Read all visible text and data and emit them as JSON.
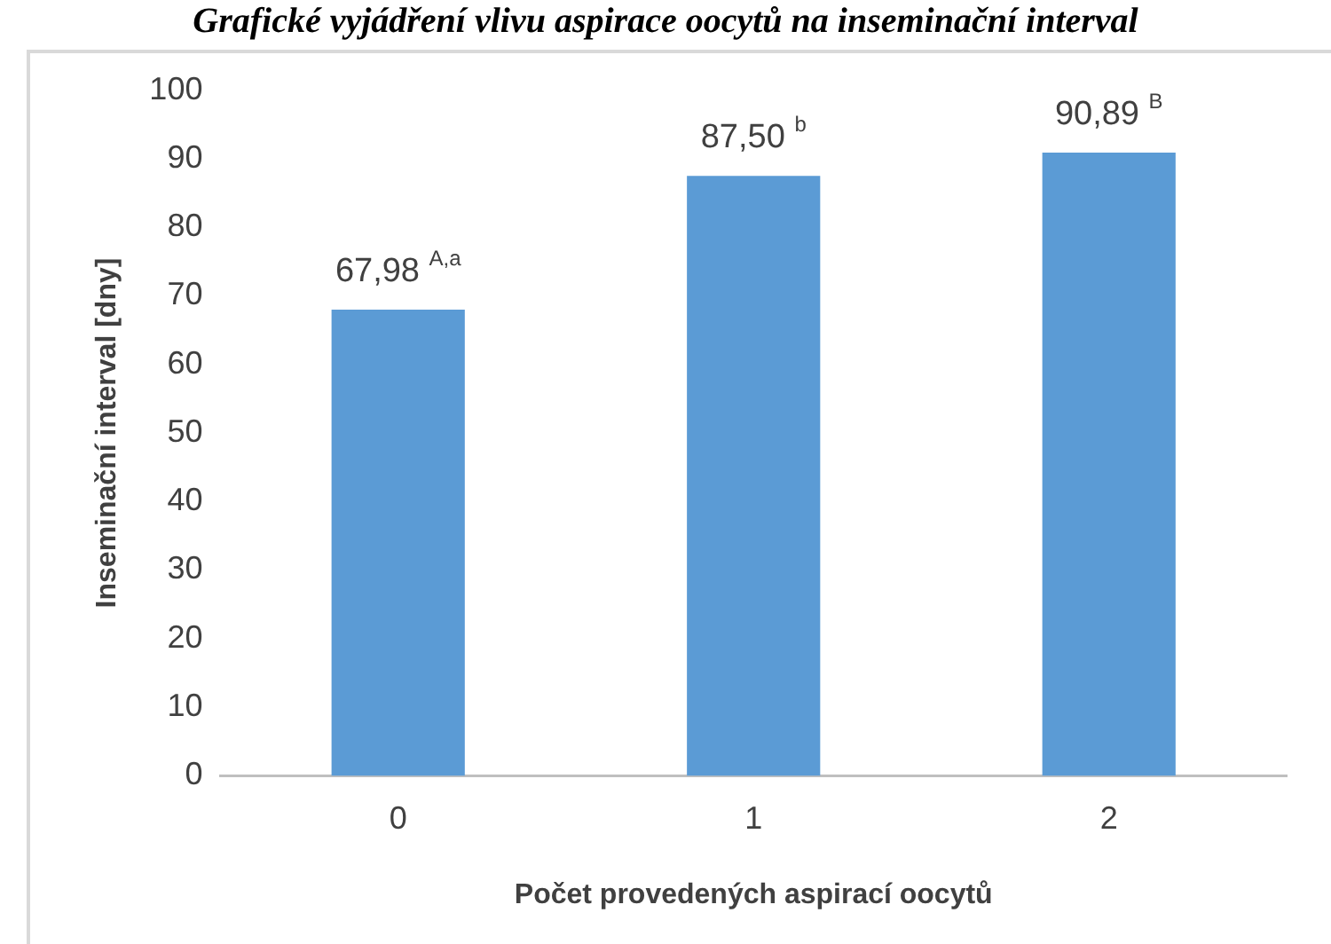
{
  "chart_data": {
    "type": "bar",
    "title": "Grafické vyjádření vlivu aspirace oocytů na inseminační interval",
    "xlabel": "Počet provedených aspirací oocytů",
    "ylabel": "Inseminační interval [dny]",
    "categories": [
      "0",
      "1",
      "2"
    ],
    "values": [
      67.98,
      87.5,
      90.89
    ],
    "color": "#5b9bd5",
    "value_labels": [
      "67,98 $^{A,a}$",
      "87,50 $^{b}$",
      "90,89 $^{B}$"
    ],
    "ylim": [
      0,
      100
    ],
    "yticks": [
      0,
      10,
      20,
      30,
      40,
      50,
      60,
      70,
      80,
      90,
      100
    ],
    "grid": false,
    "legend": false
  }
}
